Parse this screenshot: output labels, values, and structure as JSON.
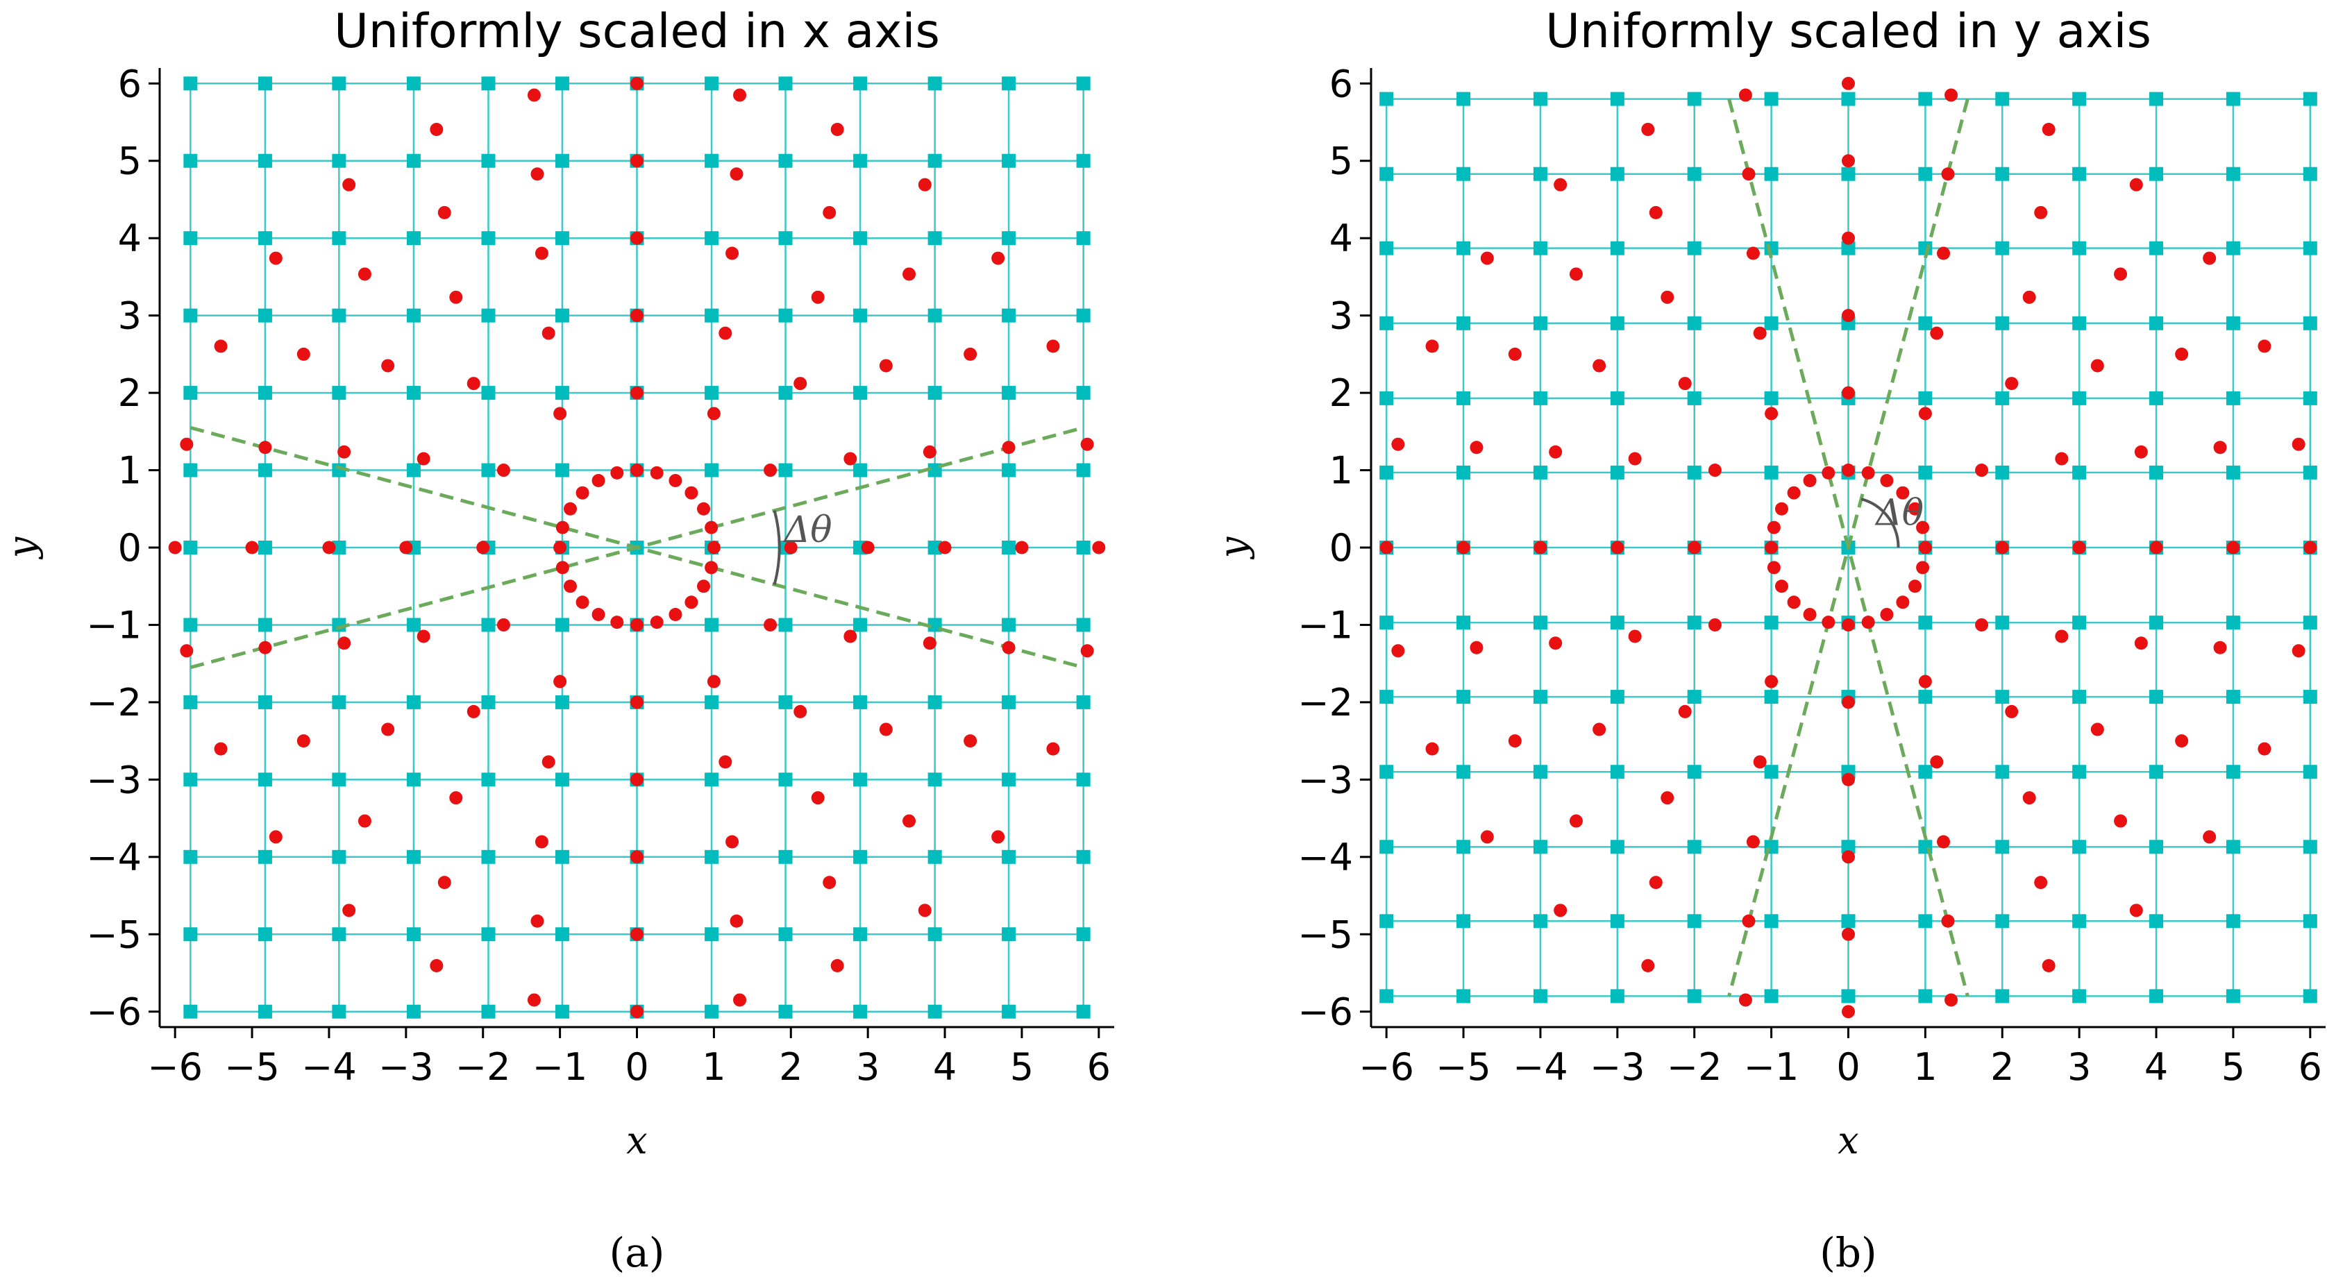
{
  "chart_data": [
    {
      "type": "scatter",
      "title": "Uniformly scaled in x axis",
      "caption": "(a)",
      "xlabel": "x",
      "ylabel": "y",
      "xlim": [
        -6.2,
        6.2
      ],
      "ylim": [
        -6.2,
        6.2
      ],
      "xticks": [
        -6,
        -5,
        -4,
        -3,
        -2,
        -1,
        0,
        1,
        2,
        3,
        4,
        5,
        6
      ],
      "yticks": [
        -6,
        -5,
        -4,
        -3,
        -2,
        -1,
        0,
        1,
        2,
        3,
        4,
        5,
        6
      ],
      "xticklabels": [
        "−6",
        "−5",
        "−4",
        "−3",
        "−2",
        "−1",
        "0",
        "1",
        "2",
        "3",
        "4",
        "5",
        "6"
      ],
      "yticklabels": [
        "−6",
        "−5",
        "−4",
        "−3",
        "−2",
        "−1",
        "0",
        "1",
        "2",
        "3",
        "4",
        "5",
        "6"
      ],
      "grid": {
        "x": [
          -5.8,
          -4.83,
          -3.87,
          -2.9,
          -1.93,
          -0.97,
          0,
          0.97,
          1.93,
          2.9,
          3.87,
          4.83,
          5.8
        ],
        "y": [
          -6,
          -5,
          -4,
          -3,
          -2,
          -1,
          0,
          1,
          2,
          3,
          4,
          5,
          6
        ],
        "color": "#3cc8c8",
        "marker_color": "#00bcbc"
      },
      "points_color": "#e81010",
      "points": {
        "radii": [
          1,
          2,
          3,
          4,
          5,
          6
        ],
        "counts": [
          24,
          12,
          16,
          20,
          24,
          28
        ],
        "scale": [
          1,
          1
        ]
      },
      "dashed_lines": [
        {
          "x": [
            -5.8,
            5.8
          ],
          "y": [
            -1.55,
            1.55
          ]
        },
        {
          "x": [
            -5.8,
            5.8
          ],
          "y": [
            1.55,
            -1.55
          ]
        }
      ],
      "line_color": "#6aaa5a",
      "annotation": {
        "label": "Δθ",
        "arc_center": [
          0,
          0
        ],
        "arc_radius": 1.85,
        "arc_from_deg": -15,
        "arc_to_deg": 15
      }
    },
    {
      "type": "scatter",
      "title": "Uniformly scaled in y axis",
      "caption": "(b)",
      "xlabel": "x",
      "ylabel": "y",
      "xlim": [
        -6.2,
        6.2
      ],
      "ylim": [
        -6.2,
        6.2
      ],
      "xticks": [
        -6,
        -5,
        -4,
        -3,
        -2,
        -1,
        0,
        1,
        2,
        3,
        4,
        5,
        6
      ],
      "yticks": [
        -6,
        -5,
        -4,
        -3,
        -2,
        -1,
        0,
        1,
        2,
        3,
        4,
        5,
        6
      ],
      "xticklabels": [
        "−6",
        "−5",
        "−4",
        "−3",
        "−2",
        "−1",
        "0",
        "1",
        "2",
        "3",
        "4",
        "5",
        "6"
      ],
      "yticklabels": [
        "−6",
        "−5",
        "−4",
        "−3",
        "−2",
        "−1",
        "0",
        "1",
        "2",
        "3",
        "4",
        "5",
        "6"
      ],
      "grid": {
        "x": [
          -6,
          -5,
          -4,
          -3,
          -2,
          -1,
          0,
          1,
          2,
          3,
          4,
          5,
          6
        ],
        "y": [
          -5.8,
          -4.83,
          -3.87,
          -2.9,
          -1.93,
          -0.97,
          0,
          0.97,
          1.93,
          2.9,
          3.87,
          4.83,
          5.8
        ],
        "color": "#3cc8c8",
        "marker_color": "#00bcbc"
      },
      "points_color": "#e81010",
      "points": {
        "radii": [
          1,
          2,
          3,
          4,
          5,
          6
        ],
        "counts": [
          24,
          12,
          16,
          20,
          24,
          28
        ],
        "scale": [
          1,
          1
        ]
      },
      "dashed_lines": [
        {
          "x": [
            -1.55,
            1.55
          ],
          "y": [
            5.8,
            -5.8
          ]
        },
        {
          "x": [
            1.55,
            -1.55
          ],
          "y": [
            5.8,
            -5.8
          ]
        }
      ],
      "line_color": "#6aaa5a",
      "annotation": {
        "label": "Δθ",
        "arc_center": [
          0,
          0
        ],
        "arc_radius": 0.65,
        "arc_from_deg": 0,
        "arc_to_deg": 75
      }
    }
  ]
}
